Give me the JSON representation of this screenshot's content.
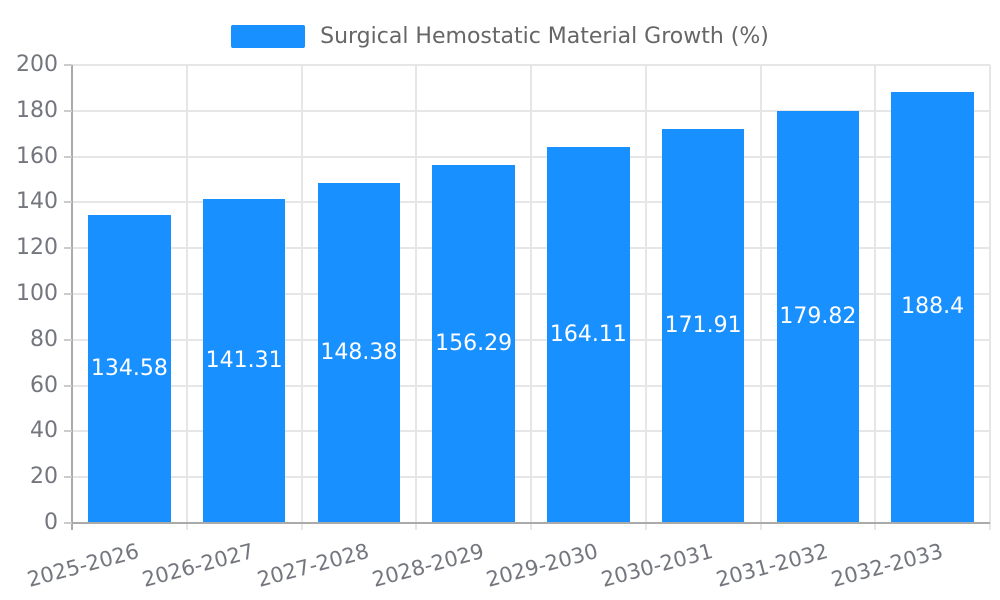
{
  "legend": {
    "label": "Surgical Hemostatic Material Growth (%)"
  },
  "chart_data": {
    "type": "bar",
    "title": "",
    "xlabel": "",
    "ylabel": "",
    "legend_position": "top-center",
    "grid": true,
    "categories": [
      "2025-2026",
      "2026-2027",
      "2027-2028",
      "2028-2029",
      "2029-2030",
      "2030-2031",
      "2031-2032",
      "2032-2033"
    ],
    "series": [
      {
        "name": "Surgical Hemostatic Material Growth (%)",
        "values": [
          134.58,
          141.31,
          148.38,
          156.29,
          164.11,
          171.91,
          179.82,
          188.4
        ]
      }
    ],
    "value_labels": [
      "134.58",
      "141.31",
      "148.38",
      "156.29",
      "164.11",
      "171.91",
      "179.82",
      "188.4"
    ],
    "ylim": [
      0,
      200
    ],
    "yticks": [
      0,
      20,
      40,
      60,
      80,
      100,
      120,
      140,
      160,
      180,
      200
    ],
    "colors": {
      "bar": "#1890ff",
      "bar_value_label": "#ffffff",
      "axis_text": "#74767e",
      "legend_text": "#666666",
      "gridline": "#e6e6e6",
      "axis_line": "#aaaaaa"
    }
  }
}
